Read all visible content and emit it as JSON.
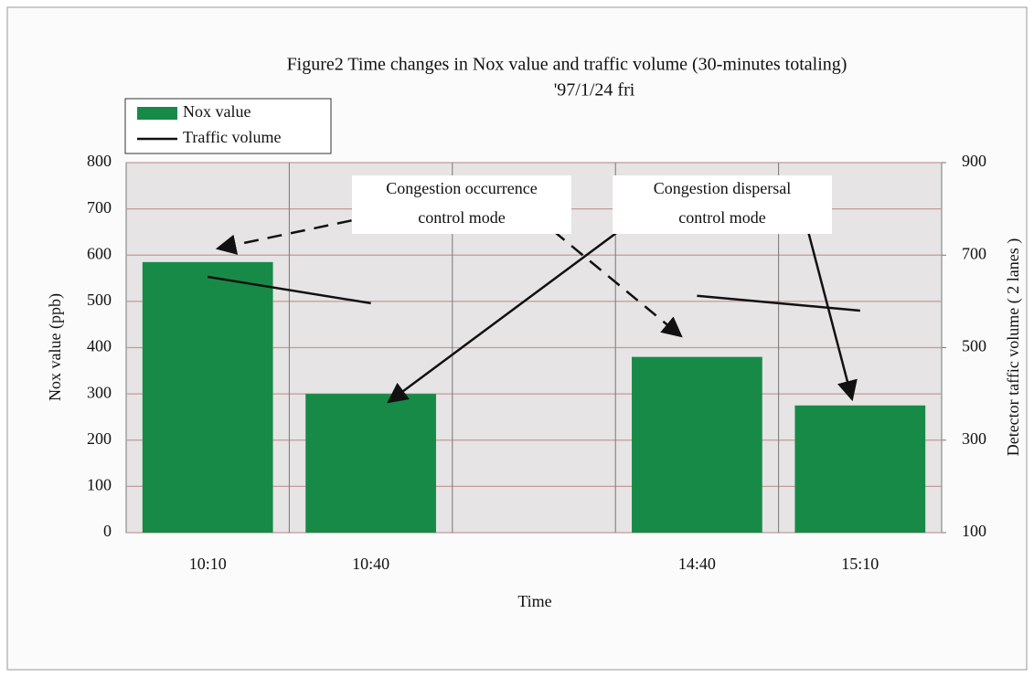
{
  "chart_data": {
    "type": "bar",
    "title": "Figure2  Time changes in Nox value and traffic volume (30-minutes totaling)",
    "subtitle": "'97/1/24 fri",
    "x_label": "Time",
    "y_label": "Nox value (ppb)",
    "y2_label": "Detector taffic volume ( 2 lanes )",
    "categories": [
      "10:10",
      "10:40",
      null,
      "14:40",
      "15:10"
    ],
    "series": [
      {
        "name": "Nox value",
        "type": "bar",
        "color": "#188a48",
        "values": [
          585,
          300,
          null,
          380,
          275
        ]
      },
      {
        "name": "Traffic volume",
        "type": "line",
        "axis": "y2",
        "color": "#111111",
        "values": [
          653,
          596,
          null,
          612,
          580
        ]
      }
    ],
    "ylim": [
      0,
      800
    ],
    "yticks": [
      0,
      100,
      200,
      300,
      400,
      500,
      600,
      700,
      800
    ],
    "y2lim": [
      100,
      900
    ],
    "y2ticks": [
      100,
      300,
      500,
      700,
      900
    ],
    "grid": true,
    "legend": "top-left",
    "annotations": [
      {
        "lines": [
          "Congestion occurrence",
          "control mode"
        ]
      },
      {
        "lines": [
          "Congestion dispersal",
          "control mode"
        ]
      }
    ]
  }
}
